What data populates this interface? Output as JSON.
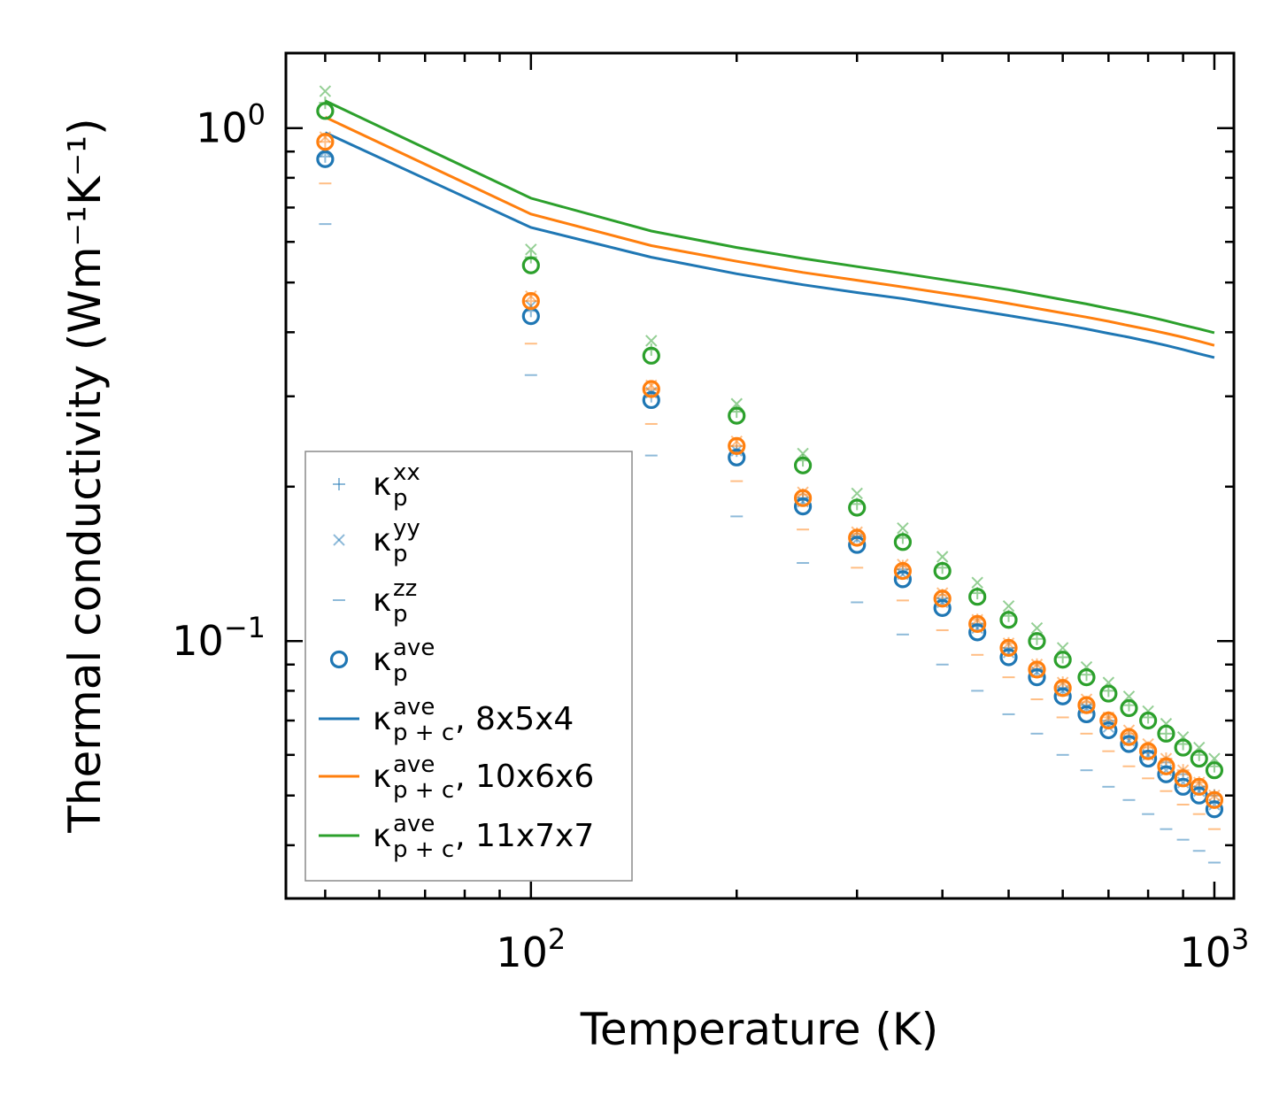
{
  "chart_data": {
    "type": "scatter+line",
    "title": "",
    "xlabel": "Temperature (K)",
    "ylabel": "Thermal conductivity (Wm⁻¹K⁻¹)",
    "xscale": "log",
    "yscale": "log",
    "xlim": [
      43.8,
      1068
    ],
    "ylim": [
      0.0315,
      1.4
    ],
    "x_ticks": [
      {
        "value": 100,
        "base": "10",
        "exp": "2"
      },
      {
        "value": 1000,
        "base": "10",
        "exp": "3"
      }
    ],
    "y_ticks": [
      {
        "value": 0.1,
        "base": "10",
        "exp": "−1"
      },
      {
        "value": 1.0,
        "base": "10",
        "exp": "0"
      }
    ],
    "temperatures": [
      50,
      100,
      150,
      200,
      250,
      300,
      350,
      400,
      450,
      500,
      550,
      600,
      650,
      700,
      750,
      800,
      850,
      900,
      950,
      1000
    ],
    "colors": {
      "blue": "#1f77b4",
      "orange": "#ff7f0e",
      "green": "#2ca02c"
    },
    "series": [
      {
        "name": "8x5x4",
        "color": "#1f77b4",
        "kxx": [
          0.88,
          0.44,
          0.3,
          0.235,
          0.19,
          0.16,
          0.138,
          0.121,
          0.108,
          0.097,
          0.088,
          0.081,
          0.075,
          0.07,
          0.065,
          0.061,
          0.058,
          0.055,
          0.052,
          0.05
        ],
        "kyy": [
          0.9,
          0.45,
          0.305,
          0.235,
          0.187,
          0.158,
          0.135,
          0.119,
          0.106,
          0.095,
          0.087,
          0.08,
          0.074,
          0.068,
          0.064,
          0.06,
          0.056,
          0.053,
          0.051,
          0.048
        ],
        "kzz": [
          0.65,
          0.33,
          0.23,
          0.175,
          0.142,
          0.119,
          0.103,
          0.09,
          0.08,
          0.072,
          0.066,
          0.06,
          0.056,
          0.052,
          0.049,
          0.046,
          0.043,
          0.041,
          0.039,
          0.037
        ],
        "kave": [
          0.87,
          0.43,
          0.295,
          0.228,
          0.183,
          0.154,
          0.132,
          0.116,
          0.104,
          0.093,
          0.085,
          0.078,
          0.072,
          0.067,
          0.063,
          0.059,
          0.055,
          0.052,
          0.05,
          0.047
        ],
        "kpc_label_suffix": "8x5x4",
        "kpc": [
          0.98,
          0.64,
          0.56,
          0.52,
          0.495,
          0.478,
          0.465,
          0.452,
          0.441,
          0.431,
          0.422,
          0.414,
          0.406,
          0.398,
          0.391,
          0.384,
          0.377,
          0.37,
          0.363,
          0.357
        ]
      },
      {
        "name": "10x6x6",
        "color": "#ff7f0e",
        "kxx": [
          0.94,
          0.46,
          0.31,
          0.24,
          0.193,
          0.162,
          0.14,
          0.123,
          0.11,
          0.099,
          0.09,
          0.083,
          0.076,
          0.071,
          0.066,
          0.062,
          0.059,
          0.056,
          0.053,
          0.05
        ],
        "kyy": [
          0.96,
          0.47,
          0.315,
          0.245,
          0.195,
          0.163,
          0.141,
          0.124,
          0.11,
          0.099,
          0.09,
          0.083,
          0.077,
          0.071,
          0.067,
          0.063,
          0.059,
          0.056,
          0.053,
          0.05
        ],
        "kzz": [
          0.78,
          0.38,
          0.265,
          0.205,
          0.165,
          0.139,
          0.12,
          0.105,
          0.094,
          0.085,
          0.077,
          0.071,
          0.066,
          0.061,
          0.057,
          0.054,
          0.051,
          0.048,
          0.046,
          0.043
        ],
        "kave": [
          0.94,
          0.46,
          0.31,
          0.24,
          0.19,
          0.159,
          0.137,
          0.121,
          0.108,
          0.097,
          0.088,
          0.081,
          0.075,
          0.07,
          0.065,
          0.061,
          0.057,
          0.054,
          0.052,
          0.049
        ],
        "kpc_label_suffix": "10x6x6",
        "kpc": [
          1.05,
          0.68,
          0.59,
          0.55,
          0.523,
          0.505,
          0.49,
          0.477,
          0.466,
          0.455,
          0.445,
          0.436,
          0.428,
          0.42,
          0.412,
          0.405,
          0.398,
          0.391,
          0.384,
          0.377
        ]
      },
      {
        "name": "11x7x7",
        "color": "#2ca02c",
        "kxx": [
          1.12,
          0.56,
          0.37,
          0.28,
          0.225,
          0.185,
          0.159,
          0.139,
          0.124,
          0.112,
          0.101,
          0.093,
          0.086,
          0.08,
          0.075,
          0.071,
          0.066,
          0.063,
          0.06,
          0.057
        ],
        "kyy": [
          1.18,
          0.58,
          0.385,
          0.29,
          0.232,
          0.194,
          0.166,
          0.146,
          0.13,
          0.117,
          0.106,
          0.097,
          0.089,
          0.083,
          0.078,
          0.073,
          0.069,
          0.065,
          0.062,
          0.059
        ],
        "kzz": [],
        "kave": [
          1.08,
          0.54,
          0.36,
          0.275,
          0.22,
          0.182,
          0.156,
          0.137,
          0.122,
          0.11,
          0.1,
          0.092,
          0.085,
          0.079,
          0.074,
          0.07,
          0.066,
          0.062,
          0.059,
          0.056
        ],
        "kpc_label_suffix": "11x7x7",
        "kpc": [
          1.13,
          0.73,
          0.63,
          0.585,
          0.557,
          0.537,
          0.521,
          0.507,
          0.495,
          0.484,
          0.473,
          0.463,
          0.454,
          0.445,
          0.437,
          0.429,
          0.421,
          0.413,
          0.406,
          0.399
        ]
      }
    ],
    "legend": {
      "position": "lower-left",
      "entries": [
        {
          "marker": "plus",
          "color": "#1f77b4",
          "base": "κ",
          "sub": "p",
          "sup": "xx",
          "suffix": ""
        },
        {
          "marker": "x",
          "color": "#1f77b4",
          "base": "κ",
          "sub": "p",
          "sup": "yy",
          "suffix": ""
        },
        {
          "marker": "dash",
          "color": "#1f77b4",
          "base": "κ",
          "sub": "p",
          "sup": "zz",
          "suffix": ""
        },
        {
          "marker": "circle",
          "color": "#1f77b4",
          "base": "κ",
          "sub": "p",
          "sup": "ave",
          "suffix": ""
        },
        {
          "marker": "line",
          "color": "#1f77b4",
          "base": "κ",
          "sub": "p + c",
          "sup": "ave",
          "suffix": ", 8x5x4"
        },
        {
          "marker": "line",
          "color": "#ff7f0e",
          "base": "κ",
          "sub": "p + c",
          "sup": "ave",
          "suffix": ", 10x6x6"
        },
        {
          "marker": "line",
          "color": "#2ca02c",
          "base": "κ",
          "sub": "p + c",
          "sup": "ave",
          "suffix": ", 11x7x7"
        }
      ]
    }
  }
}
